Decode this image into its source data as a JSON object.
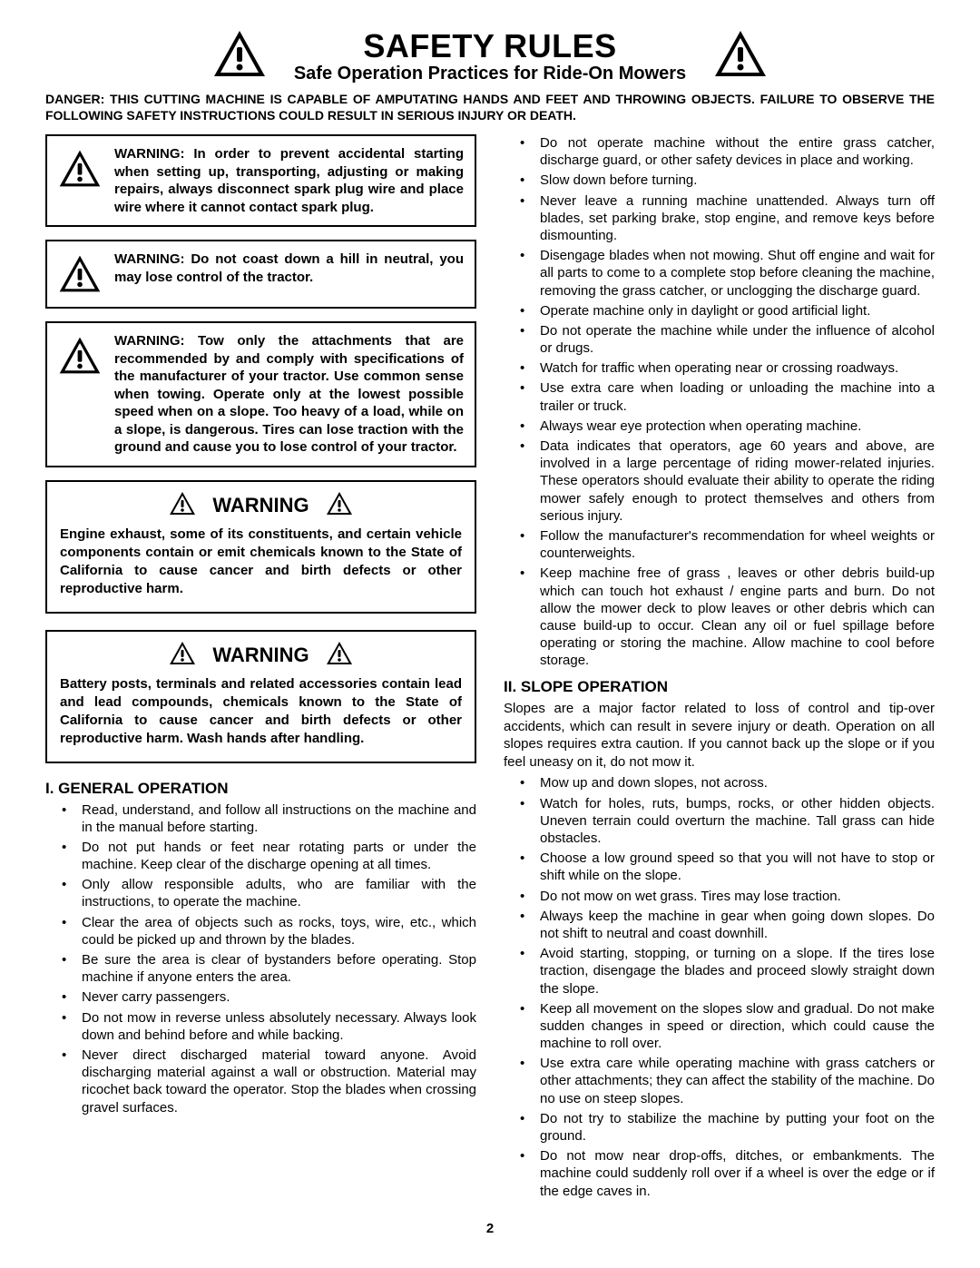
{
  "page_number": "2",
  "header": {
    "title": "SAFETY RULES",
    "subtitle": "Safe Operation Practices for Ride-On Mowers"
  },
  "danger_text": "DANGER:  THIS CUTTING MACHINE IS CAPABLE OF AMPUTATING HANDS AND FEET AND THROWING OBJECTS.  FAILURE TO OBSERVE THE FOLLOWING SAFETY INSTRUCTIONS COULD RESULT IN SERIOUS INJURY OR DEATH.",
  "icon": {
    "size_large": 60,
    "size_small": 48,
    "size_inline": 30,
    "fill": "#000000"
  },
  "warning_boxes": [
    "WARNING:  In order to prevent accidental starting when setting up, transporting, adjusting or making repairs, always disconnect spark plug wire and place wire where it cannot contact spark plug.",
    "WARNING:  Do not coast down a hill in neutral, you may lose control of the tractor.",
    "WARNING:  Tow only the attachments that are recommended by and comply with specifications of the manufacturer of your tractor. Use common sense when towing. Operate only at the lowest possible speed when on a slope. Too heavy of a load, while on a slope, is dangerous.  Tires can lose traction with the ground and cause you to lose control of your tractor."
  ],
  "big_warnings": [
    {
      "title": "WARNING",
      "text": "Engine exhaust, some of its constituents, and certain vehicle components contain or emit chemicals known to the State of California to cause cancer and birth defects or other reproductive harm."
    },
    {
      "title": "WARNING",
      "text": "Battery posts, terminals and related accessories contain lead and lead compounds, chemicals known to the State of California to cause cancer and birth defects or other reproductive harm. Wash hands after handling."
    }
  ],
  "section1": {
    "heading": "I. GENERAL OPERATION",
    "items_left": [
      "Read, understand, and follow all instructions on the machine and in the manual before starting.",
      "Do not put hands or feet near rotating parts or under the machine. Keep clear of the discharge opening at all times.",
      "Only allow responsible adults, who are familiar with the instructions, to operate the machine.",
      "Clear the area of objects such as rocks, toys, wire, etc., which could be picked up and thrown by the blades.",
      "Be sure the area is clear of bystanders before operating.  Stop machine if anyone enters the area.",
      "Never carry passengers.",
      "Do not mow in reverse unless absolutely necessary. Always look down and behind before and while backing.",
      "Never direct discharged material toward anyone. Avoid discharging material against a wall or obstruction. Material may ricochet back toward the operator. Stop the blades when crossing gravel surfaces."
    ],
    "items_right": [
      "Do not operate machine without the entire grass catcher, discharge guard, or other safety devices in place and working.",
      "Slow down before turning.",
      "Never leave a running machine unattended.  Always turn off blades, set parking brake, stop engine, and remove keys before dismounting.",
      "Disengage blades when not mowing. Shut off engine and wait for all parts to come to a complete stop before cleaning the machine, removing the grass catcher, or unclogging the discharge guard.",
      "Operate machine only in daylight or good artificial light.",
      "Do not operate the machine while under the influence of alcohol or drugs.",
      "Watch for traffic when operating near or crossing roadways.",
      "Use extra care when loading or unloading the machine into a trailer or truck.",
      "Always wear eye protection when operating machine.",
      "Data indicates that operators, age 60 years and above, are involved in a large percentage of riding mower-related injuries.  These operators should evaluate their ability to operate the riding mower safely enough to protect themselves and others from serious injury.",
      "Follow the manufacturer's recommendation for wheel weights or counterweights.",
      "Keep machine free of grass , leaves or other debris build-up which can touch hot exhaust / engine parts and burn. Do not allow the mower deck to plow leaves or other debris which can cause build-up to occur. Clean any oil or fuel spillage before operating or storing the machine. Allow machine to cool before storage."
    ]
  },
  "section2": {
    "heading": "II. SLOPE OPERATION",
    "intro": "Slopes are a major factor related to loss of control and tip-over accidents, which can result in severe injury or death.  Operation on all slopes requires extra caution.  If you cannot back up the slope or if you feel uneasy on it, do not mow it.",
    "items": [
      "Mow up and down slopes, not across.",
      "Watch for holes, ruts, bumps, rocks, or other hidden objects.  Uneven terrain could overturn the machine. Tall grass can hide obstacles.",
      "Choose a low ground speed so that you will not have to stop or shift while on the slope.",
      "Do not mow on wet grass. Tires may lose traction.",
      "Always keep the machine in gear when going down slopes. Do not shift to neutral and coast downhill.",
      "Avoid starting, stopping, or turning on a slope.  If the tires lose traction,  disengage the blades and proceed slowly straight down the slope.",
      "Keep all movement on the slopes slow and gradual. Do not make sudden changes in speed or direction, which could cause the machine to roll over.",
      "Use extra care while operating machine with grass catchers or other attachments; they can affect the stability of the machine. Do no use on steep slopes.",
      "Do not  try to stabilize the machine by putting your foot on the ground.",
      "Do not mow near drop-offs, ditches, or embankments. The machine could suddenly roll over if a wheel is over the edge or if the edge caves in."
    ]
  }
}
